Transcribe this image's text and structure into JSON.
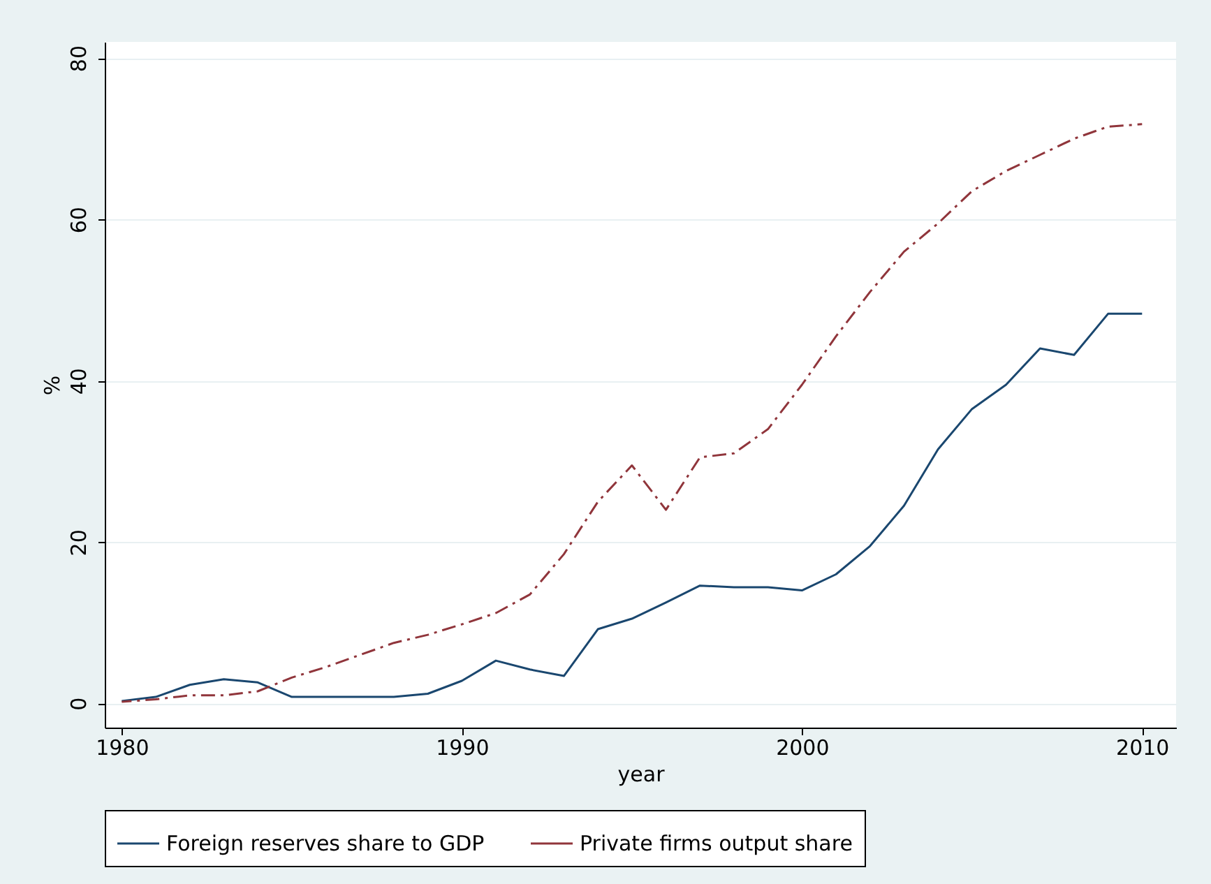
{
  "chart_data": {
    "type": "line",
    "xlabel": "year",
    "ylabel": "%",
    "x": [
      1980,
      1981,
      1982,
      1983,
      1984,
      1985,
      1986,
      1987,
      1988,
      1989,
      1990,
      1991,
      1992,
      1993,
      1994,
      1995,
      1996,
      1997,
      1998,
      1999,
      2000,
      2001,
      2002,
      2003,
      2004,
      2005,
      2006,
      2007,
      2008,
      2009,
      2010
    ],
    "series": [
      {
        "name": "Foreign reserves share to GDP",
        "color": "#1a476f",
        "line_style": "solid",
        "values": [
          0.3,
          0.8,
          2.3,
          3.0,
          2.6,
          0.8,
          0.8,
          0.8,
          0.8,
          1.2,
          2.8,
          5.3,
          4.2,
          3.4,
          9.2,
          10.5,
          12.5,
          14.6,
          14.4,
          14.4,
          14.0,
          16.0,
          19.5,
          24.5,
          31.5,
          36.5,
          39.5,
          44,
          43.2,
          48.3,
          48.3
        ]
      },
      {
        "name": "Private firms output share",
        "color": "#90353b",
        "line_style": "dashed",
        "values": [
          0.2,
          0.5,
          1.0,
          1.0,
          1.5,
          3.2,
          4.5,
          6.0,
          7.5,
          8.5,
          9.8,
          11.2,
          13.5,
          18.5,
          25,
          29.5,
          24,
          30.5,
          31,
          34,
          39.5,
          45.5,
          51,
          56,
          59.5,
          63.5,
          66,
          68,
          70,
          71.5,
          71.8
        ]
      }
    ],
    "xlim": [
      1979.5,
      2011
    ],
    "xticks": [
      1980,
      1990,
      2000,
      2010
    ],
    "ylim": [
      -3,
      82
    ],
    "yticks": [
      0,
      20,
      40,
      60,
      80
    ],
    "grid": "y",
    "legend": "bottom"
  }
}
